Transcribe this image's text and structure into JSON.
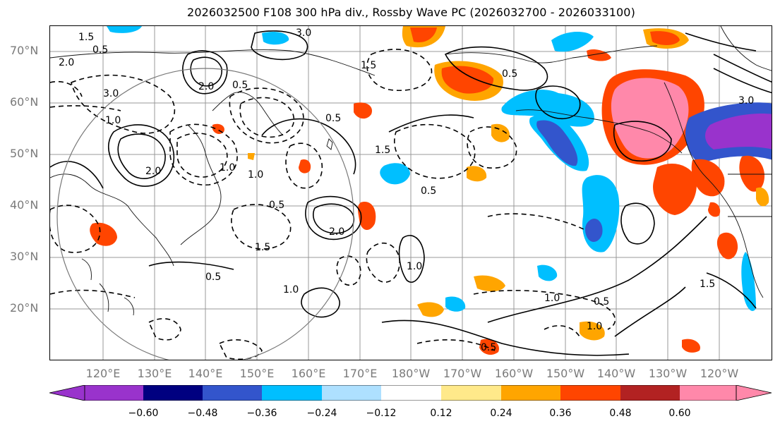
{
  "title": "2026032500 F108 300 hPa div., Rossby Wave PC (2026032700 - 2026033100)",
  "lat_labels": [
    "70°N",
    "60°N",
    "50°N",
    "40°N",
    "30°N",
    "20°N"
  ],
  "lon_labels": [
    "120°E",
    "130°E",
    "140°E",
    "150°E",
    "160°E",
    "170°E",
    "180°W",
    "170°W",
    "160°W",
    "150°W",
    "140°W",
    "130°W",
    "120°W"
  ],
  "colorbar": {
    "colors": [
      "#9933cc",
      "#000080",
      "#3355cc",
      "#00bfff",
      "#aee0ff",
      "#ffffff",
      "#ffe98a",
      "#ffa500",
      "#ff4500",
      "#b22222",
      "#ff88aa"
    ],
    "ticks": [
      "−0.60",
      "−0.48",
      "−0.36",
      "−0.24",
      "−0.12",
      "0.12",
      "0.24",
      "0.36",
      "0.48",
      "0.60"
    ]
  },
  "contour_labels": [
    "3.0",
    "1.5",
    "0.5",
    "2.0",
    "3.0",
    "1.0",
    "0.5",
    "1.5",
    "2.0",
    "0.5",
    "1.0",
    "0.5",
    "2.0",
    "0.5",
    "1.0",
    "1.5",
    "1.0",
    "0.5",
    "1.0",
    "0.5",
    "1.5",
    "1.0",
    "0.5",
    "1.5",
    "3.0",
    "2.0",
    "1.0",
    "0.5"
  ]
}
